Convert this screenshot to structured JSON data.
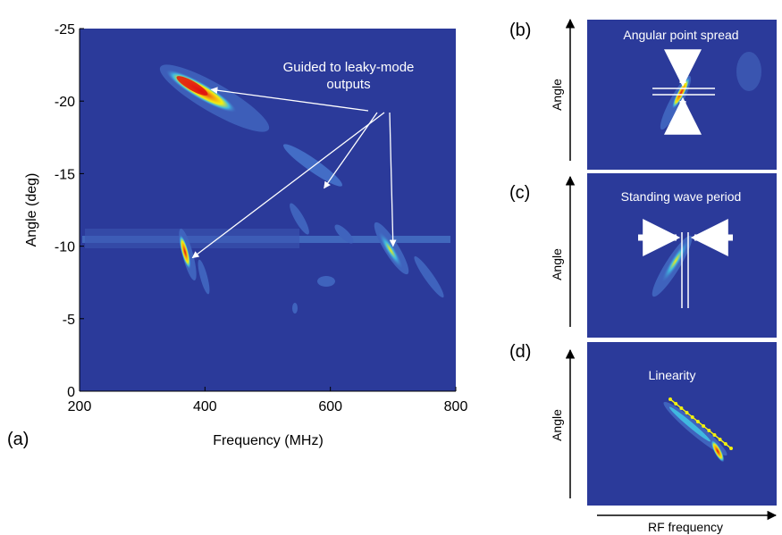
{
  "colors": {
    "background": "#2b3a9a",
    "panel_frame": "#1e2f8a",
    "annotation": "#ffffff",
    "hot": "#e01010",
    "warm": "#f2f010",
    "cool": "#40b8e0",
    "faint": "#4470c8"
  },
  "chart_data": [
    {
      "type": "heatmap",
      "panel_label": "(a)",
      "xlabel": "Frequency (MHz)",
      "ylabel": "Angle (deg)",
      "xlim": [
        200,
        800
      ],
      "ylim": [
        0,
        -25
      ],
      "x_ticks": [
        "200",
        "400",
        "600",
        "800"
      ],
      "y_ticks": [
        "-25",
        "-20",
        "-15",
        "-10",
        "-5",
        "0"
      ],
      "grid": false,
      "annotation": {
        "text_line1": "Guided to leaky-mode",
        "text_line2": "outputs",
        "arrow_targets": [
          {
            "freq_mhz": 410,
            "angle_deg": -20.8
          },
          {
            "freq_mhz": 590,
            "angle_deg": -14.0
          },
          {
            "freq_mhz": 380,
            "angle_deg": -9.2
          },
          {
            "freq_mhz": 700,
            "angle_deg": -10.0
          }
        ]
      },
      "features": [
        {
          "name": "upper streak",
          "freq_mhz": [
            360,
            460
          ],
          "angle_deg": [
            -22.5,
            -18.5
          ],
          "peak_intensity": "high"
        },
        {
          "name": "middle streak",
          "freq_mhz": [
            540,
            640
          ],
          "angle_deg": [
            -16.0,
            -12.5
          ],
          "peak_intensity": "low"
        },
        {
          "name": "left streak",
          "freq_mhz": [
            368,
            388
          ],
          "angle_deg": [
            -10.5,
            -7.5
          ],
          "peak_intensity": "high"
        },
        {
          "name": "right streak",
          "freq_mhz": [
            680,
            720
          ],
          "angle_deg": [
            -11.0,
            -8.0
          ],
          "peak_intensity": "medium"
        },
        {
          "name": "horizontal band",
          "freq_mhz": [
            200,
            720
          ],
          "angle_deg": [
            -10.2,
            -9.8
          ],
          "peak_intensity": "low"
        }
      ]
    },
    {
      "type": "heatmap",
      "panel_label": "(b)",
      "title": "Angular point spread",
      "ylabel": "Angle"
    },
    {
      "type": "heatmap",
      "panel_label": "(c)",
      "title": "Standing wave period",
      "ylabel": "Angle"
    },
    {
      "type": "heatmap",
      "panel_label": "(d)",
      "title": "Linearity",
      "ylabel": "Angle",
      "xlabel": "RF frequency"
    }
  ]
}
